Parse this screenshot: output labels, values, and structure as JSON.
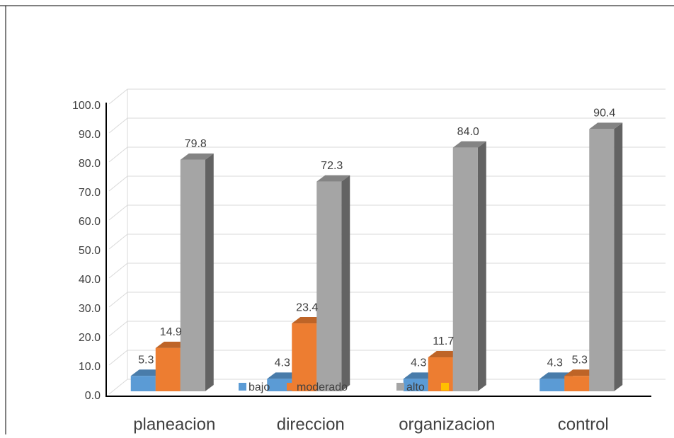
{
  "chart_data": {
    "type": "bar3d",
    "categories": [
      "planeacion",
      "direccion",
      "organizacion",
      "control"
    ],
    "series": [
      {
        "name": "bajo",
        "color": "#5b9bd5",
        "values": [
          5.3,
          4.3,
          4.3,
          4.3
        ],
        "value_labels": [
          "5.3",
          "4.3",
          "4.3",
          "4.3"
        ]
      },
      {
        "name": "moderado",
        "color": "#ed7d31",
        "values": [
          14.9,
          23.4,
          11.7,
          5.3
        ],
        "value_labels": [
          "14.9",
          "23.4",
          "11.7",
          "5.3"
        ]
      },
      {
        "name": "alto",
        "color": "#a5a5a5",
        "values": [
          79.8,
          72.3,
          84.0,
          90.4
        ],
        "value_labels": [
          "79.8",
          "72.3",
          "84.0",
          "90.4"
        ]
      }
    ],
    "ylim": [
      0,
      100
    ],
    "yticks": [
      {
        "value": 0,
        "label": "0.0"
      },
      {
        "value": 10,
        "label": "10.0"
      },
      {
        "value": 20,
        "label": "20.0"
      },
      {
        "value": 30,
        "label": "30.0"
      },
      {
        "value": 40,
        "label": "40.0"
      },
      {
        "value": 50,
        "label": "50.0"
      },
      {
        "value": 60,
        "label": "60.0"
      },
      {
        "value": 70,
        "label": "70.0"
      },
      {
        "value": 80,
        "label": "80.0"
      },
      {
        "value": 90,
        "label": "90.0"
      },
      {
        "value": 100,
        "label": "100.0"
      }
    ],
    "grid": true
  }
}
